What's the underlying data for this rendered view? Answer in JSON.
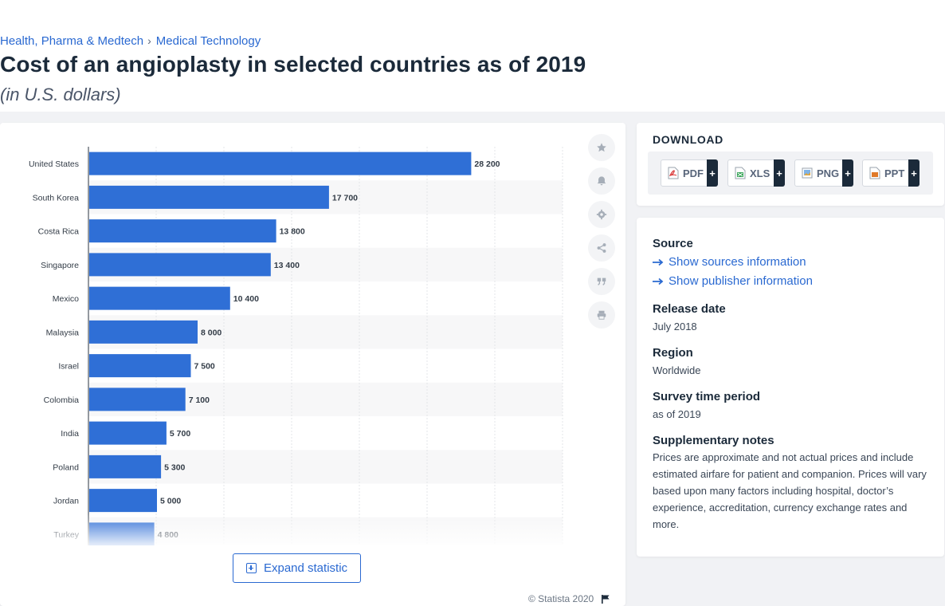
{
  "breadcrumb": {
    "category": "Health, Pharma & Medtech",
    "separator": "›",
    "subcategory": "Medical Technology"
  },
  "title": "Cost of an angioplasty in selected countries as of 2019",
  "subtitle": "(in U.S. dollars)",
  "expand_label": "Expand statistic",
  "copyright": "© Statista 2020",
  "download": {
    "title": "DOWNLOAD",
    "formats": [
      "PDF",
      "XLS",
      "PNG",
      "PPT"
    ],
    "plus": "+"
  },
  "source": {
    "heading": "Source",
    "sources_link": "Show sources information",
    "publisher_link": "Show publisher information"
  },
  "release": {
    "heading": "Release date",
    "value": "July 2018"
  },
  "region": {
    "heading": "Region",
    "value": "Worldwide"
  },
  "survey": {
    "heading": "Survey time period",
    "value": "as of 2019"
  },
  "notes": {
    "heading": "Supplementary notes",
    "text": "Prices are approximate and not actual prices and include estimated airfare for patient and companion. Prices will vary based upon many factors including hospital, doctor’s experience, accreditation, currency exchange rates and more."
  },
  "colors": {
    "bar": "#2f6fd6",
    "accent": "#2a69d1"
  },
  "chart_data": {
    "type": "bar",
    "orientation": "horizontal",
    "categories": [
      "United States",
      "South Korea",
      "Costa Rica",
      "Singapore",
      "Mexico",
      "Malaysia",
      "Israel",
      "Colombia",
      "India",
      "Poland",
      "Jordan",
      "Turkey"
    ],
    "values": [
      28200,
      17700,
      13800,
      13400,
      10400,
      8000,
      7500,
      7100,
      5700,
      5300,
      5000,
      4800
    ],
    "value_labels": [
      "28 200",
      "17 700",
      "13 800",
      "13 400",
      "10 400",
      "8 000",
      "7 500",
      "7 100",
      "5 700",
      "5 300",
      "5 000",
      "4 800"
    ],
    "xlim": [
      0,
      35000
    ],
    "grid": true
  }
}
